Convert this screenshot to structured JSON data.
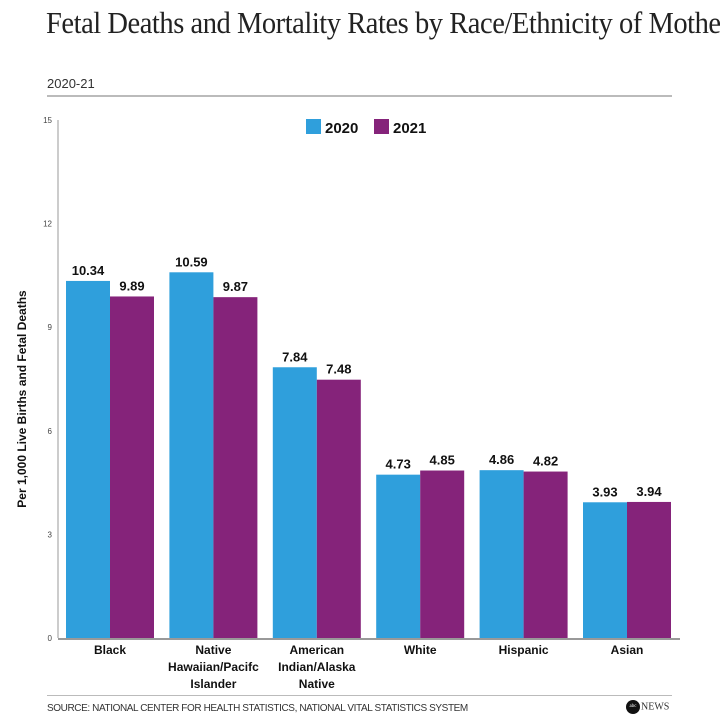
{
  "chart_data": {
    "type": "bar",
    "title": "Fetal Deaths and Mortality Rates by Race/Ethnicity of Mother in the U.S.",
    "subtitle": "2020-21",
    "ylabel": "Per 1,000 Live Births and Fetal Deaths",
    "xlabel": "",
    "ylim": [
      0,
      15
    ],
    "yticks": [
      0,
      3,
      6,
      9,
      12,
      15
    ],
    "grid": false,
    "legend": "top-center",
    "categories": [
      [
        "Black"
      ],
      [
        "Native",
        "Hawaiian/Pacifc",
        "Islander"
      ],
      [
        "American",
        "Indian/Alaska",
        "Native"
      ],
      [
        "White"
      ],
      [
        "Hispanic"
      ],
      [
        "Asian"
      ]
    ],
    "series": [
      {
        "name": "2020",
        "color": "#2f9fdc",
        "values": [
          10.34,
          10.59,
          7.84,
          4.73,
          4.86,
          3.93
        ]
      },
      {
        "name": "2021",
        "color": "#85237a",
        "values": [
          9.89,
          9.87,
          7.48,
          4.85,
          4.82,
          3.94
        ]
      }
    ]
  },
  "source": "SOURCE: NATIONAL CENTER FOR HEALTH STATISTICS, NATIONAL VITAL STATISTICS SYSTEM",
  "logo": {
    "mark": "abc",
    "text": "NEWS"
  }
}
